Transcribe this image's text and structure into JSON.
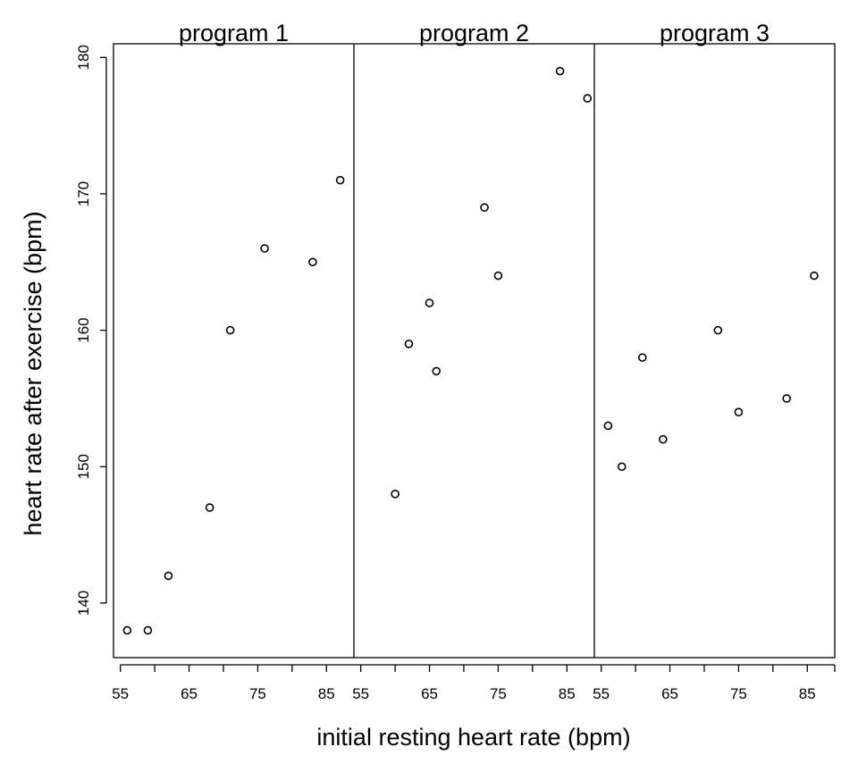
{
  "chart_data": {
    "type": "scatter",
    "xlabel": "initial resting heart rate (bpm)",
    "ylabel": "heart rate after exercise (bpm)",
    "y_ticks": [
      140,
      150,
      160,
      170,
      180
    ],
    "x_ticks_labeled": [
      55,
      65,
      75,
      85
    ],
    "x_ticks_minor": [
      60,
      70,
      80
    ],
    "xlim": [
      54,
      89
    ],
    "ylim": [
      136,
      181
    ],
    "panels": [
      {
        "title": "program 1",
        "x": [
          56,
          59,
          62,
          68,
          71,
          76,
          83,
          87
        ],
        "y": [
          138,
          138,
          142,
          147,
          160,
          166,
          165,
          171
        ]
      },
      {
        "title": "program 2",
        "x": [
          60,
          62,
          65,
          66,
          73,
          75,
          84,
          88
        ],
        "y": [
          148,
          159,
          162,
          157,
          169,
          164,
          179,
          177
        ]
      },
      {
        "title": "program 3",
        "x": [
          56,
          58,
          61,
          64,
          72,
          75,
          82,
          86
        ],
        "y": [
          153,
          150,
          158,
          152,
          160,
          154,
          155,
          164
        ]
      }
    ]
  }
}
